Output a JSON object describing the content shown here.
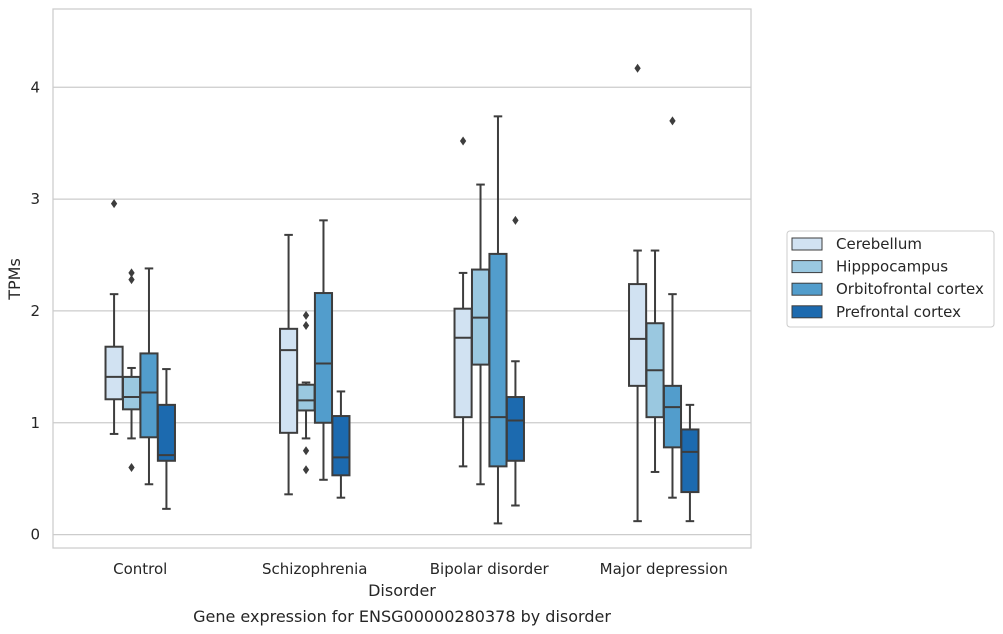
{
  "chart_data": {
    "type": "box",
    "title": "",
    "caption": "Gene expression for ENSG00000280378 by disorder",
    "xlabel": "Disorder",
    "ylabel": "TPMs",
    "ylim": [
      -0.12,
      4.7
    ],
    "yticks": [
      0,
      1,
      2,
      3,
      4
    ],
    "grid": "horizontal",
    "legend_position": "right",
    "categories": [
      "Control",
      "Schizophrenia",
      "Bipolar disorder",
      "Major depression"
    ],
    "series": [
      {
        "name": "Cerebellum",
        "color": "#d1e2f2",
        "boxes": [
          {
            "whislo": 0.9,
            "q1": 1.21,
            "med": 1.41,
            "q3": 1.68,
            "whishi": 2.15,
            "fliers": [
              2.96
            ]
          },
          {
            "whislo": 0.36,
            "q1": 0.91,
            "med": 1.65,
            "q3": 1.84,
            "whishi": 2.68,
            "fliers": []
          },
          {
            "whislo": 0.61,
            "q1": 1.05,
            "med": 1.76,
            "q3": 2.02,
            "whishi": 2.34,
            "fliers": [
              3.52
            ]
          },
          {
            "whislo": 0.12,
            "q1": 1.33,
            "med": 1.75,
            "q3": 2.24,
            "whishi": 2.54,
            "fliers": [
              4.17
            ]
          }
        ]
      },
      {
        "name": "Hipppocampus",
        "color": "#9ac8e0",
        "boxes": [
          {
            "whislo": 0.86,
            "q1": 1.12,
            "med": 1.23,
            "q3": 1.41,
            "whishi": 1.49,
            "fliers": [
              0.6,
              2.28,
              2.34
            ]
          },
          {
            "whislo": 0.86,
            "q1": 1.11,
            "med": 1.2,
            "q3": 1.34,
            "whishi": 1.36,
            "fliers": [
              0.58,
              0.75,
              1.87,
              1.96
            ]
          },
          {
            "whislo": 0.45,
            "q1": 1.52,
            "med": 1.94,
            "q3": 2.37,
            "whishi": 3.13,
            "fliers": []
          },
          {
            "whislo": 0.56,
            "q1": 1.05,
            "med": 1.47,
            "q3": 1.89,
            "whishi": 2.54,
            "fliers": []
          }
        ]
      },
      {
        "name": "Orbitofrontal cortex",
        "color": "#529dcc",
        "boxes": [
          {
            "whislo": 0.45,
            "q1": 0.87,
            "med": 1.27,
            "q3": 1.62,
            "whishi": 2.38,
            "fliers": []
          },
          {
            "whislo": 0.49,
            "q1": 1.0,
            "med": 1.53,
            "q3": 2.16,
            "whishi": 2.81,
            "fliers": []
          },
          {
            "whislo": 0.1,
            "q1": 0.61,
            "med": 1.05,
            "q3": 2.51,
            "whishi": 3.74,
            "fliers": []
          },
          {
            "whislo": 0.33,
            "q1": 0.78,
            "med": 1.14,
            "q3": 1.33,
            "whishi": 2.15,
            "fliers": [
              3.7
            ]
          }
        ]
      },
      {
        "name": "Prefrontal cortex",
        "color": "#1c6aaf",
        "boxes": [
          {
            "whislo": 0.23,
            "q1": 0.66,
            "med": 0.71,
            "q3": 1.16,
            "whishi": 1.48,
            "fliers": []
          },
          {
            "whislo": 0.33,
            "q1": 0.53,
            "med": 0.69,
            "q3": 1.06,
            "whishi": 1.28,
            "fliers": []
          },
          {
            "whislo": 0.26,
            "q1": 0.66,
            "med": 1.02,
            "q3": 1.23,
            "whishi": 1.55,
            "fliers": [
              2.81
            ]
          },
          {
            "whislo": 0.12,
            "q1": 0.38,
            "med": 0.74,
            "q3": 0.94,
            "whishi": 1.16,
            "fliers": []
          }
        ]
      }
    ]
  }
}
